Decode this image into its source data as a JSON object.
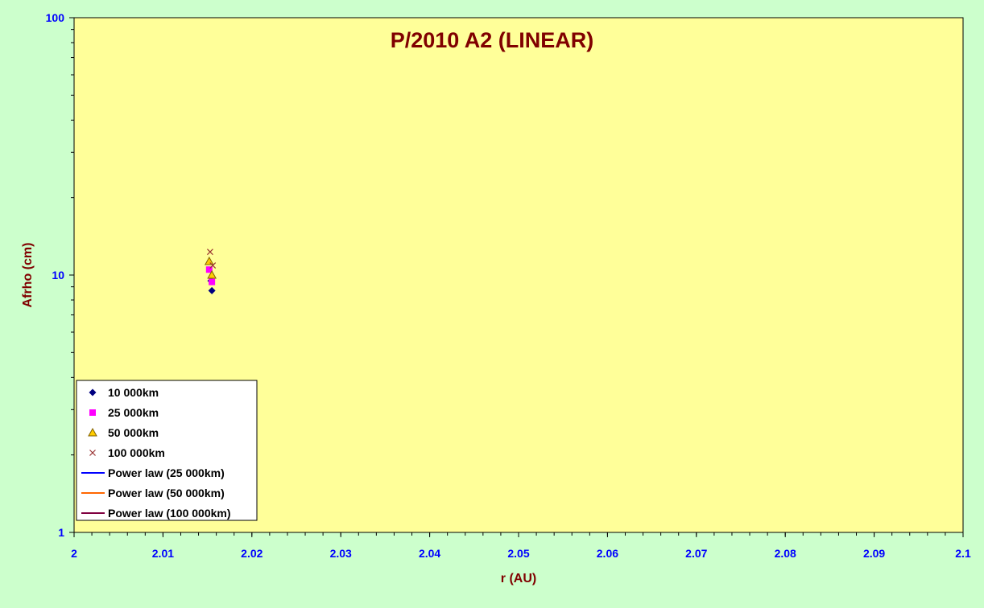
{
  "chart_data": {
    "type": "scatter",
    "title": "P/2010 A2 (LINEAR)",
    "xlabel": "r (AU)",
    "ylabel": "Afrho (cm)",
    "xlim": [
      2,
      2.1
    ],
    "ylim": [
      1,
      100
    ],
    "y_scale": "log",
    "x_ticks": [
      "2",
      "2.01",
      "2.02",
      "2.03",
      "2.04",
      "2.05",
      "2.06",
      "2.07",
      "2.08",
      "2.09",
      "2.1"
    ],
    "y_ticks": [
      "1",
      "10",
      "100"
    ],
    "grid": false,
    "legend_position": "bottom-left",
    "colors": {
      "page_background": "#ccffcc",
      "plot_background": "#ffff99",
      "title": "#800000",
      "axis_labels": "#800000",
      "tick_labels": "#0000ff"
    },
    "series": [
      {
        "name": "10 000km",
        "marker": "diamond",
        "color": "#000080",
        "points": [
          {
            "x": 2.0155,
            "y": 8.7
          },
          {
            "x": 2.0154,
            "y": 9.5
          }
        ]
      },
      {
        "name": "25 000km",
        "marker": "square",
        "color": "#ff00ff",
        "points": [
          {
            "x": 2.0152,
            "y": 10.5
          },
          {
            "x": 2.0155,
            "y": 9.4
          }
        ]
      },
      {
        "name": "50 000km",
        "marker": "triangle",
        "color": "#ffcc00",
        "stroke": "#806000",
        "points": [
          {
            "x": 2.0152,
            "y": 11.3
          },
          {
            "x": 2.0155,
            "y": 10.0
          }
        ]
      },
      {
        "name": "100 000km",
        "marker": "x",
        "color": "#993333",
        "points": [
          {
            "x": 2.0153,
            "y": 12.3
          },
          {
            "x": 2.0156,
            "y": 10.9
          }
        ]
      },
      {
        "name": "Power law (25 000km)",
        "type": "line",
        "color": "#0000ff",
        "points": []
      },
      {
        "name": "Power law (50 000km)",
        "type": "line",
        "color": "#ff6600",
        "points": []
      },
      {
        "name": "Power law (100 000km)",
        "type": "line",
        "color": "#800040",
        "points": []
      }
    ]
  }
}
